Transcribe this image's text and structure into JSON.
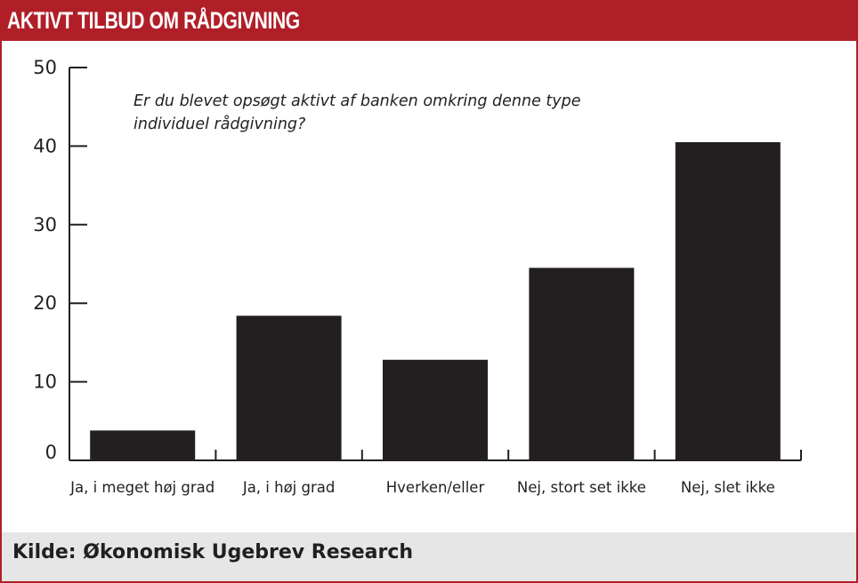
{
  "header": {
    "title": "AKTIVT TILBUD OM RÅDGIVNING"
  },
  "footer": {
    "source": "Kilde: Økonomisk Ugebrev Research"
  },
  "colors": {
    "accent": "#b01f28",
    "bar": "#231f20",
    "footer_bg": "#e6e6e6"
  },
  "chart_data": {
    "type": "bar",
    "title": "AKTIVT TILBUD OM RÅDGIVNING",
    "subtitle_lines": [
      "Er du blevet opsøgt aktivt af banken omkring denne type",
      "individuel rådgivning?"
    ],
    "categories": [
      "Ja, i meget høj grad",
      "Ja, i høj grad",
      "Hverken/eller",
      "Nej, stort set ikke",
      "Nej, slet ikke"
    ],
    "values": [
      3.8,
      18.4,
      12.8,
      24.5,
      40.5
    ],
    "xlabel": "",
    "ylabel": "",
    "ylim": [
      0,
      50
    ],
    "yticks": [
      0,
      10,
      20,
      30,
      40,
      50
    ],
    "grid": false,
    "legend": "none"
  }
}
